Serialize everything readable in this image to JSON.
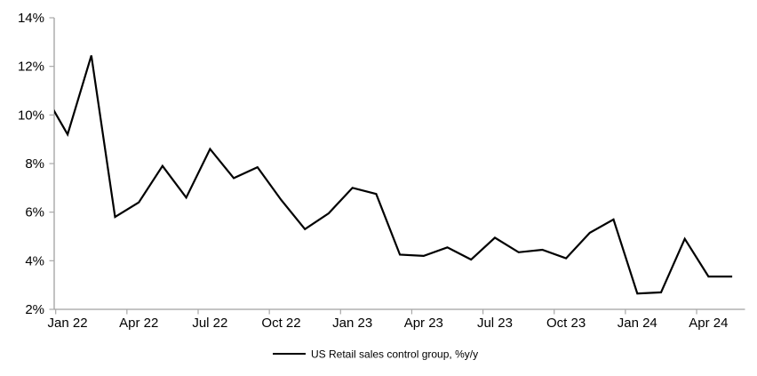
{
  "chart_data": {
    "type": "line",
    "title": "",
    "legend": [
      "US Retail sales control group, %y/y"
    ],
    "legend_position": "bottom-center",
    "grid": false,
    "ylim": [
      2,
      14
    ],
    "y_tick_step": 2,
    "y_tick_labels": [
      "2%",
      "4%",
      "6%",
      "8%",
      "10%",
      "12%",
      "14%"
    ],
    "x_tick_labels": [
      "Jan 22",
      "Apr 22",
      "Jul 22",
      "Oct 22",
      "Jan 23",
      "Apr 23",
      "Jul 23",
      "Oct 23",
      "Jan 24",
      "Apr 24"
    ],
    "x": [
      "Dec 21",
      "Jan 22",
      "Feb 22",
      "Mar 22",
      "Apr 22",
      "May 22",
      "Jun 22",
      "Jul 22",
      "Aug 22",
      "Sep 22",
      "Oct 22",
      "Nov 22",
      "Dec 22",
      "Jan 23",
      "Feb 23",
      "Mar 23",
      "Apr 23",
      "May 23",
      "Jun 23",
      "Jul 23",
      "Aug 23",
      "Sep 23",
      "Oct 23",
      "Nov 23",
      "Dec 23",
      "Jan 24",
      "Feb 24",
      "Mar 24",
      "Apr 24",
      "May 24"
    ],
    "series": [
      {
        "name": "US Retail sales control group, %y/y",
        "values": [
          10.9,
          9.2,
          12.45,
          5.8,
          6.4,
          7.9,
          6.6,
          8.6,
          7.4,
          7.85,
          6.5,
          5.3,
          5.95,
          7.0,
          6.75,
          4.25,
          4.2,
          4.55,
          4.05,
          4.95,
          4.35,
          4.45,
          4.1,
          5.15,
          5.7,
          2.65,
          2.7,
          4.9,
          3.35,
          3.35
        ]
      }
    ],
    "first_point_clipped_at_left_axis": true,
    "line_color": "#000000",
    "axis_color": "#a0a0a0",
    "text_color": "#000000",
    "background_color": "#ffffff"
  }
}
